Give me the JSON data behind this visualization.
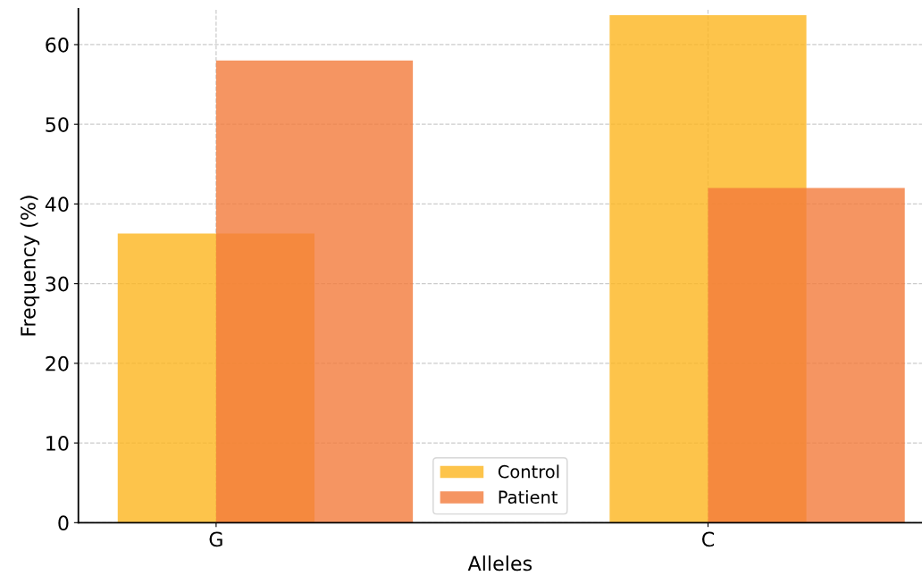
{
  "chart_data": {
    "type": "bar",
    "xlabel": "Alleles",
    "ylabel": "Frequency (%)",
    "categories": [
      "G",
      "C"
    ],
    "series": [
      {
        "name": "Control",
        "color": "#fdc44b",
        "values": [
          36.3,
          63.7
        ]
      },
      {
        "name": "Patient",
        "color": "#f59562",
        "values": [
          58,
          42
        ]
      }
    ],
    "ylim": [
      0,
      64.5
    ],
    "yticks": [
      0,
      10,
      20,
      30,
      40,
      50,
      60
    ],
    "grid": true,
    "legend": "bottom"
  }
}
